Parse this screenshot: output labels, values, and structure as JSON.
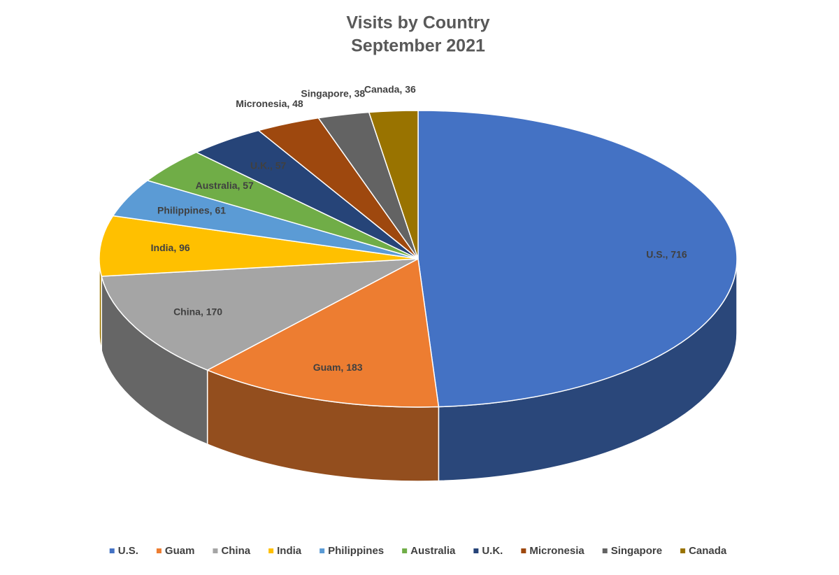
{
  "chart_data": {
    "type": "pie",
    "title": "Visits by Country",
    "subtitle": "September 2021",
    "categories": [
      "U.S.",
      "Guam",
      "China",
      "India",
      "Philippines",
      "Australia",
      "U.K.",
      "Micronesia",
      "Singapore",
      "Canada"
    ],
    "values": [
      716,
      183,
      170,
      96,
      61,
      57,
      57,
      48,
      38,
      36
    ],
    "value_labels": [
      "U.S., 716",
      "Guam, 183",
      "China, 170",
      "India, 96",
      "Philippines, 61",
      "Australia, 57",
      "U.K., 57",
      "Micronesia, 48",
      "Singapore, 38",
      "Canada, 36"
    ],
    "colors": [
      "#4472c4",
      "#ed7d31",
      "#a5a5a5",
      "#ffc000",
      "#5b9bd5",
      "#70ad47",
      "#264478",
      "#9e480e",
      "#636363",
      "#997300"
    ],
    "legend": "bottom"
  }
}
